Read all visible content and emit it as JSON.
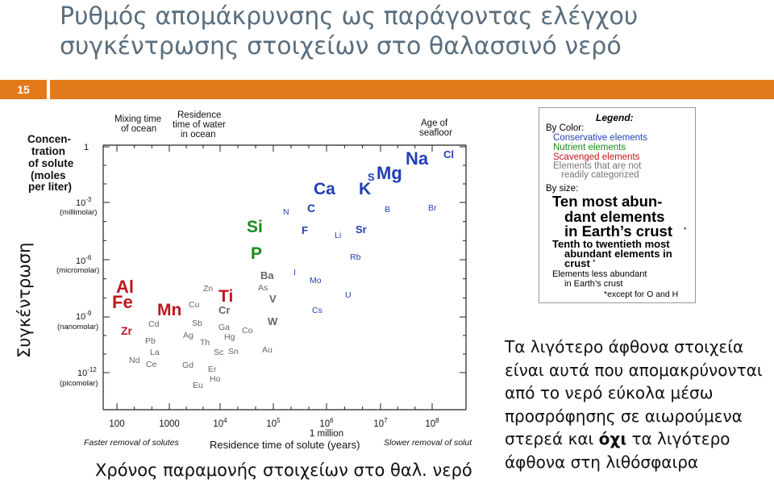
{
  "title": "Ρυθμός απομάκρυνσης ως παράγοντας ελέγχου συγκέντρωσης στοιχείων στο θαλασσινό νερό",
  "slide_number": "15",
  "vertical_label": "Συγκέντρωση",
  "x_caption": "Χρόνος παραμονής στοιχείων στο θαλ. νερό",
  "note": {
    "part1": "Τα λιγότερο άφθονα στοιχεία είναι αυτά που απομακρύνονται από το νερό εύκολα μέσω προσρόφησης σε αιωρούμενα στερεά και ",
    "bold": "όχι",
    "part2": " τα λιγότερο άφθονα στη λιθόσφαιρα"
  },
  "diagram": {
    "y_title": [
      "Concen-",
      "tration",
      "of solute",
      "(moles",
      "per liter)"
    ],
    "y_ticks": [
      {
        "value": "1",
        "sub": ""
      },
      {
        "value": "10-3",
        "sub": "(millimolar)"
      },
      {
        "value": "10-6",
        "sub": "(micromolar)"
      },
      {
        "value": "10-9",
        "sub": "(nanomolar)"
      },
      {
        "value": "10-12",
        "sub": "(picomolar)"
      }
    ],
    "x_ticks": [
      "100",
      "1000",
      "10^4",
      "10^5",
      "10^6",
      "10^7",
      "10^8"
    ],
    "x_million": "1 million",
    "x_title": "Residence time of solute (years)",
    "faster": "Faster removal of solutes",
    "slower": "Slower removal of solut",
    "top_labels": {
      "mixing": [
        "Mixing time",
        "of ocean"
      ],
      "residence": [
        "Residence",
        "time of water",
        "in ocean"
      ],
      "seafloor": [
        "Age of",
        "seafloor"
      ]
    },
    "elements": [
      {
        "s": "Na",
        "c": "#1f3fb5"
      },
      {
        "s": "Cl",
        "c": "#1f3fb5"
      },
      {
        "s": "Mg",
        "c": "#1f3fb5"
      },
      {
        "s": "S",
        "c": "#1f3fb5"
      },
      {
        "s": "K",
        "c": "#1f3fb5"
      },
      {
        "s": "Ca",
        "c": "#1f3fb5"
      },
      {
        "s": "C",
        "c": "#1f3fb5"
      },
      {
        "s": "N",
        "c": "#1f3fb5"
      },
      {
        "s": "B",
        "c": "#1f3fb5"
      },
      {
        "s": "Br",
        "c": "#1f3fb5"
      },
      {
        "s": "F",
        "c": "#1f3fb5"
      },
      {
        "s": "Li",
        "c": "#1f3fb5"
      },
      {
        "s": "Sr",
        "c": "#1f3fb5"
      },
      {
        "s": "Rb",
        "c": "#1f3fb5"
      },
      {
        "s": "I",
        "c": "#1f3fb5"
      },
      {
        "s": "Mo",
        "c": "#1f3fb5"
      },
      {
        "s": "U",
        "c": "#1f3fb5"
      },
      {
        "s": "Cs",
        "c": "#1f3fb5"
      },
      {
        "s": "Si",
        "c": "#1a8a1a"
      },
      {
        "s": "P",
        "c": "#1a8a1a"
      },
      {
        "s": "Al",
        "c": "#c0171f"
      },
      {
        "s": "Fe",
        "c": "#c0171f"
      },
      {
        "s": "Mn",
        "c": "#c0171f"
      },
      {
        "s": "Ti",
        "c": "#c0171f"
      },
      {
        "s": "Zr",
        "c": "#c0171f"
      },
      {
        "s": "Ba",
        "c": "#666666"
      },
      {
        "s": "As",
        "c": "#666666"
      },
      {
        "s": "V",
        "c": "#666666"
      },
      {
        "s": "W",
        "c": "#666666"
      },
      {
        "s": "Zn",
        "c": "#666666"
      },
      {
        "s": "Cu",
        "c": "#666666"
      },
      {
        "s": "Cr",
        "c": "#666666"
      },
      {
        "s": "Cd",
        "c": "#666666"
      },
      {
        "s": "Sb",
        "c": "#666666"
      },
      {
        "s": "Ga",
        "c": "#666666"
      },
      {
        "s": "Hg",
        "c": "#666666"
      },
      {
        "s": "Co",
        "c": "#666666"
      },
      {
        "s": "Pb",
        "c": "#666666"
      },
      {
        "s": "Ag",
        "c": "#666666"
      },
      {
        "s": "Th",
        "c": "#666666"
      },
      {
        "s": "La",
        "c": "#666666"
      },
      {
        "s": "Sc",
        "c": "#666666"
      },
      {
        "s": "Sn",
        "c": "#666666"
      },
      {
        "s": "Au",
        "c": "#666666"
      },
      {
        "s": "Nd",
        "c": "#666666"
      },
      {
        "s": "Ce",
        "c": "#666666"
      },
      {
        "s": "Gd",
        "c": "#666666"
      },
      {
        "s": "Er",
        "c": "#666666"
      },
      {
        "s": "Ho",
        "c": "#666666"
      },
      {
        "s": "Eu",
        "c": "#666666"
      }
    ]
  },
  "legend": {
    "title": "Legend:",
    "by_color": "By Color:",
    "conservative": "Conservative elements",
    "nutrient": "Nutrient elements",
    "scavenged": "Scavenged elements",
    "other1": "Elements that are not",
    "other2": "readily categorized",
    "by_size": "By size:",
    "big": [
      "Ten most abun-",
      "dant elements",
      "in Earth’s crust"
    ],
    "mid": [
      "Tenth to twentieth most",
      "abundant elements in",
      "crust"
    ],
    "small": [
      "Elements less abundant",
      "in Earth’s crust"
    ],
    "star": "*",
    "except": "*except for O and H",
    "colors": {
      "conservative": "#1f3fb5",
      "nutrient": "#1a8a1a",
      "scavenged": "#c0171f",
      "other": "#777777"
    }
  }
}
